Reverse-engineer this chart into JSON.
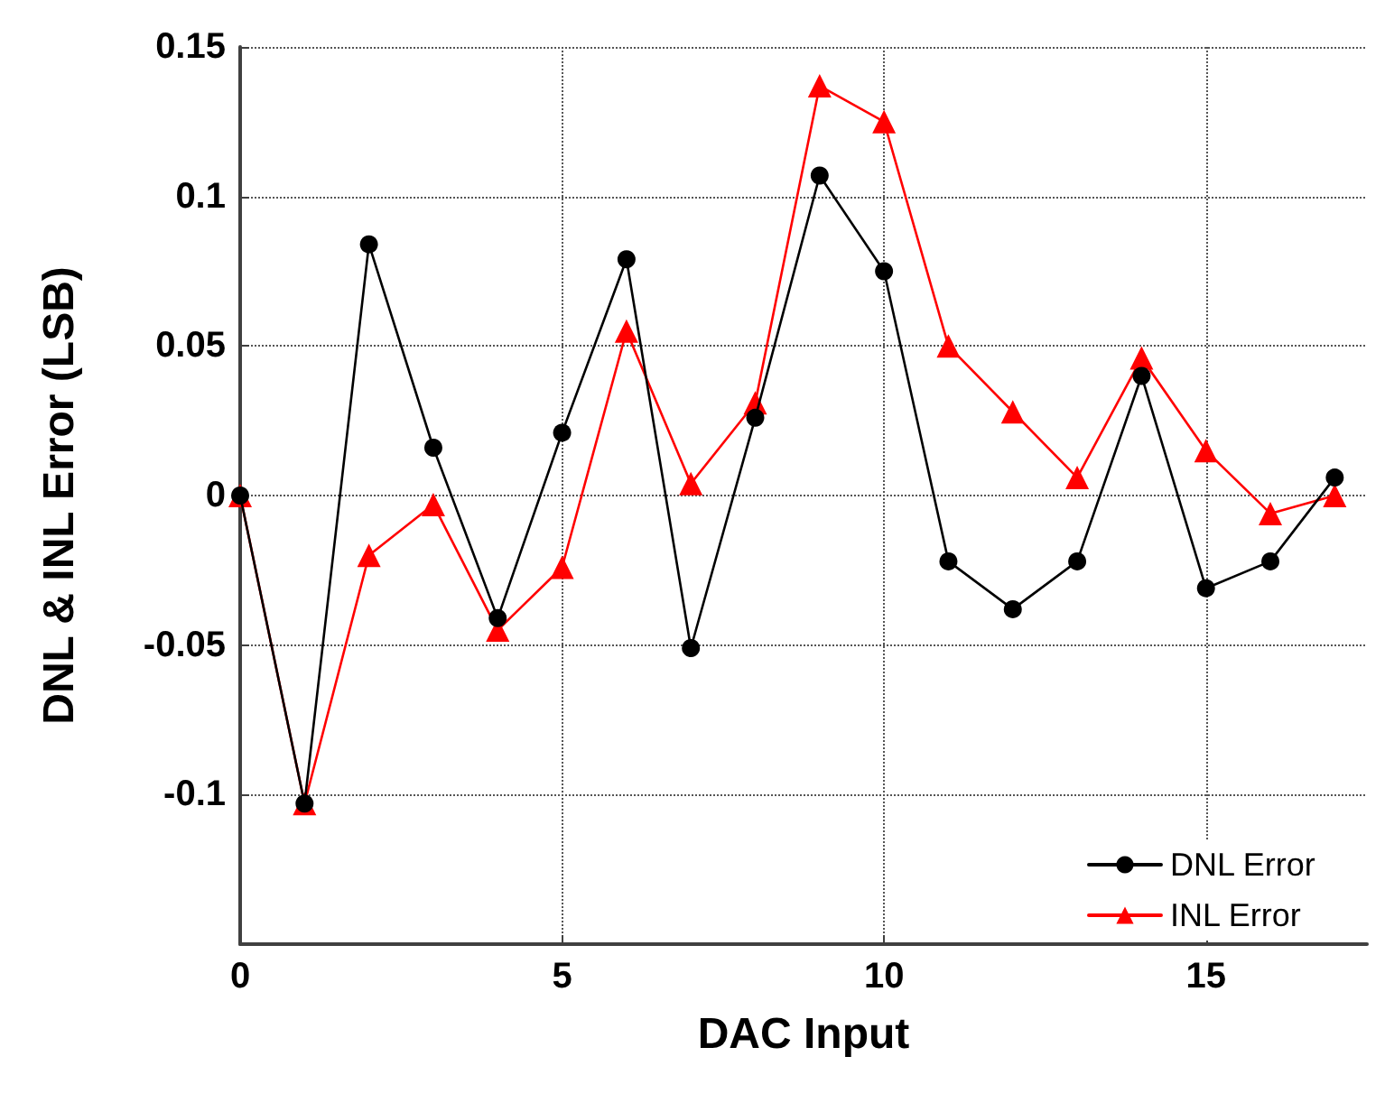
{
  "chart_data": {
    "type": "line",
    "xlabel": "DAC Input",
    "ylabel": "DNL & INL Error (LSB)",
    "x": [
      0,
      1,
      2,
      3,
      4,
      5,
      6,
      7,
      8,
      9,
      10,
      11,
      12,
      13,
      14,
      15,
      16,
      17
    ],
    "series": [
      {
        "name": "DNL Error",
        "color": "#000000",
        "marker": "circle",
        "values": [
          0,
          -0.103,
          0.084,
          0.016,
          -0.041,
          0.021,
          0.079,
          -0.051,
          0.026,
          0.107,
          0.075,
          -0.022,
          -0.038,
          -0.022,
          0.04,
          -0.031,
          -0.022,
          0.006
        ]
      },
      {
        "name": "INL Error",
        "color": "#ff0000",
        "marker": "triangle",
        "values": [
          0,
          -0.103,
          -0.02,
          -0.003,
          -0.045,
          -0.024,
          0.055,
          0.004,
          0.031,
          0.137,
          0.125,
          0.05,
          0.028,
          0.006,
          0.046,
          0.015,
          -0.006,
          0.0
        ]
      }
    ],
    "xlim": [
      0,
      17.5
    ],
    "xticks": [
      0,
      5,
      10,
      15
    ],
    "ylim": [
      -0.15,
      0.15
    ],
    "yticks": [
      {
        "value": -0.15,
        "label": null
      },
      -0.1,
      -0.05,
      0,
      0.05,
      0.1,
      0.15
    ],
    "grid": true,
    "legend": "bottom right",
    "line_style": "solid"
  }
}
